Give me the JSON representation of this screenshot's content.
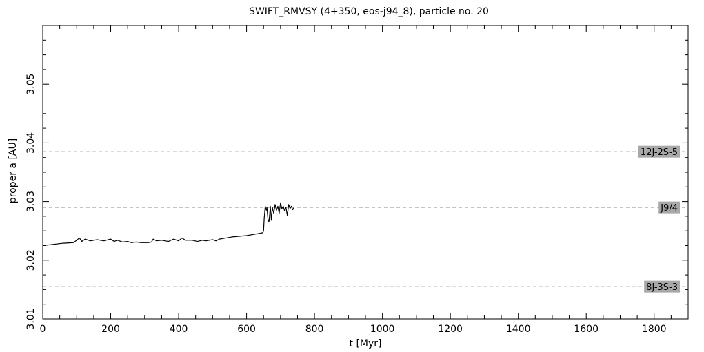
{
  "chart_data": {
    "type": "line",
    "title": "SWIFT_RMVSY (4+350, eos-j94_8), particle no. 20",
    "xlabel": "t [Myr]",
    "ylabel": "proper a [AU]",
    "xlim": [
      0,
      1900
    ],
    "ylim": [
      3.01,
      3.06
    ],
    "x_ticks": [
      0,
      200,
      400,
      600,
      800,
      1000,
      1200,
      1400,
      1600,
      1800
    ],
    "y_ticks": [
      3.01,
      3.02,
      3.03,
      3.04,
      3.05
    ],
    "x_tick_labels": [
      "0",
      "200",
      "400",
      "600",
      "800",
      "1000",
      "1200",
      "1400",
      "1600",
      "1800"
    ],
    "y_tick_labels": [
      "3.01",
      "3.02",
      "3.03",
      "3.04",
      "3.05"
    ],
    "grid": false,
    "line_color": "#000000",
    "resonance_color": "#a0a0a0",
    "label_box_color": "#a8a8a8",
    "resonances": [
      {
        "label": "12J-2S-5",
        "a": 3.0385
      },
      {
        "label": "J9/4",
        "a": 3.029
      },
      {
        "label": "8J-3S-3",
        "a": 3.0155
      }
    ],
    "series": [
      {
        "x": [
          0,
          30,
          60,
          90,
          100,
          108,
          115,
          125,
          140,
          160,
          180,
          200,
          210,
          220,
          235,
          250,
          260,
          275,
          290,
          310,
          320,
          325,
          335,
          350,
          370,
          385,
          400,
          410,
          420,
          440,
          455,
          470,
          480,
          500,
          510,
          520,
          540,
          560,
          580,
          600,
          620,
          640,
          648,
          650,
          652,
          655,
          658,
          660,
          663,
          666,
          670,
          673,
          676,
          680,
          684,
          688,
          692,
          696,
          700,
          704,
          708,
          712,
          716,
          720,
          724,
          728,
          732,
          736,
          740
        ],
        "y": [
          3.0225,
          3.0227,
          3.0229,
          3.023,
          3.0234,
          3.0238,
          3.0232,
          3.0236,
          3.0233,
          3.0235,
          3.0233,
          3.0236,
          3.0232,
          3.0234,
          3.0231,
          3.0232,
          3.023,
          3.0231,
          3.023,
          3.023,
          3.0231,
          3.0236,
          3.0233,
          3.0234,
          3.0232,
          3.0236,
          3.0233,
          3.0238,
          3.0234,
          3.0234,
          3.0232,
          3.0234,
          3.0233,
          3.0235,
          3.0233,
          3.0236,
          3.0238,
          3.024,
          3.0241,
          3.0242,
          3.0244,
          3.0246,
          3.0247,
          3.025,
          3.0272,
          3.0292,
          3.0285,
          3.029,
          3.027,
          3.0265,
          3.0292,
          3.0268,
          3.029,
          3.028,
          3.0295,
          3.0285,
          3.0292,
          3.028,
          3.0298,
          3.0288,
          3.0292,
          3.0284,
          3.029,
          3.0276,
          3.0295,
          3.0288,
          3.0292,
          3.0286,
          3.029
        ]
      }
    ]
  }
}
